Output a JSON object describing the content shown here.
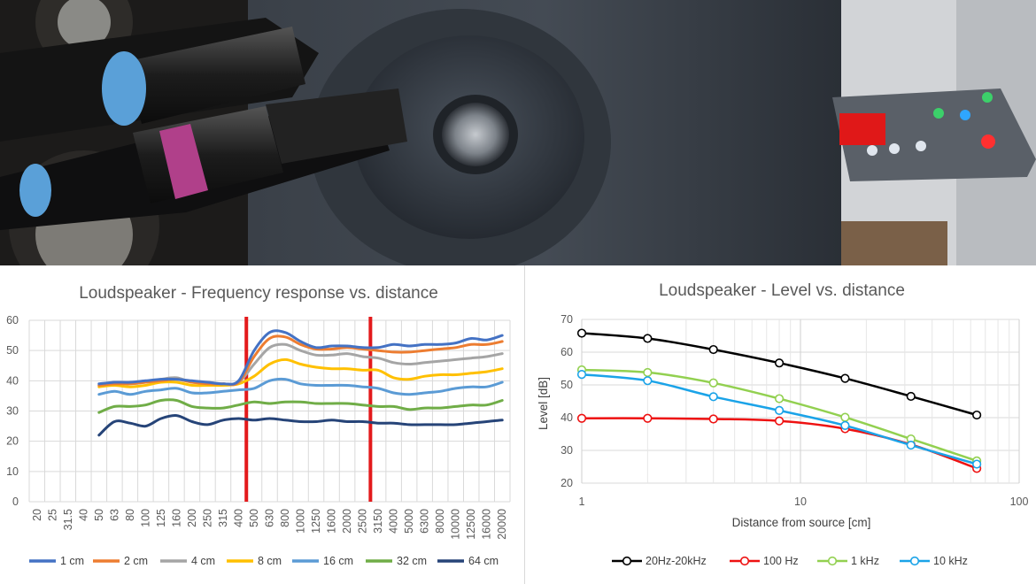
{
  "photo": {
    "subject": "Microphone in front of loudspeaker tweeter, audio interface on the right",
    "colors": {
      "speaker": "#2a2f36",
      "wall": "#c9ccd0",
      "cable": "#101214",
      "mic_body": "#2a2a2a",
      "blue_tip": "#5aa0d8",
      "pink_ring": "#b0408a",
      "led_red": "#ff2020"
    }
  },
  "chart_data": [
    {
      "type": "line",
      "title": "Loudspeaker - Frequency response vs. distance",
      "xlabel": "",
      "ylabel": "",
      "ylim": [
        0,
        60
      ],
      "yticks": [
        0,
        10,
        20,
        30,
        40,
        50,
        60
      ],
      "grid": true,
      "legend_position": "bottom",
      "categories": [
        "20",
        "25",
        "31.5",
        "40",
        "50",
        "63",
        "80",
        "100",
        "125",
        "160",
        "200",
        "250",
        "315",
        "400",
        "500",
        "630",
        "800",
        "1000",
        "1250",
        "1600",
        "2000",
        "2500",
        "3150",
        "4000",
        "5000",
        "6300",
        "8000",
        "10000",
        "12500",
        "16000",
        "20000"
      ],
      "markers": {
        "color": "#e31a1c",
        "categories": [
          "500",
          "3150"
        ]
      },
      "series": [
        {
          "name": "1 cm",
          "color": "#4472c4",
          "values": [
            null,
            null,
            null,
            null,
            39,
            39.5,
            39.5,
            40,
            40.5,
            40.5,
            40,
            39.5,
            39,
            40,
            50,
            56,
            56,
            53,
            51,
            51.5,
            51.5,
            51,
            51,
            52,
            51.5,
            52,
            52,
            52.5,
            54,
            53.5,
            55
          ]
        },
        {
          "name": "2 cm",
          "color": "#ed7d31",
          "values": [
            null,
            null,
            null,
            null,
            38.5,
            39,
            39,
            39.5,
            40,
            40.5,
            39.5,
            39,
            39,
            39.5,
            48,
            54,
            54.5,
            52,
            50.5,
            50.5,
            51,
            50.5,
            50,
            49.5,
            49.5,
            50,
            50.5,
            51,
            52,
            52,
            53
          ]
        },
        {
          "name": "4 cm",
          "color": "#a5a5a5",
          "values": [
            null,
            null,
            null,
            null,
            38.5,
            39.5,
            39,
            39.5,
            40.5,
            41,
            39.5,
            39.5,
            39,
            39.5,
            45.5,
            51,
            52,
            50,
            48.5,
            48.5,
            49,
            48,
            47.5,
            46,
            45.5,
            46,
            46.5,
            47,
            47.5,
            48,
            49
          ]
        },
        {
          "name": "8 cm",
          "color": "#ffc000",
          "values": [
            null,
            null,
            null,
            null,
            38,
            38.5,
            38,
            38.5,
            39.5,
            39.5,
            38.5,
            38.5,
            38.5,
            39,
            41.5,
            45.5,
            47,
            45.5,
            44.5,
            44,
            44,
            43.5,
            43.5,
            41,
            40.5,
            41.5,
            42,
            42,
            42.5,
            43,
            44
          ]
        },
        {
          "name": "16 cm",
          "color": "#5b9bd5",
          "values": [
            null,
            null,
            null,
            null,
            35.5,
            36.5,
            35.5,
            36.5,
            37,
            37.5,
            36,
            36,
            36.5,
            37,
            37.5,
            40,
            40.5,
            39,
            38.5,
            38.5,
            38.5,
            38,
            37.5,
            36,
            35.5,
            36,
            36.5,
            37.5,
            38,
            38,
            39.5
          ]
        },
        {
          "name": "32 cm",
          "color": "#70ad47",
          "values": [
            null,
            null,
            null,
            null,
            29.5,
            31.5,
            31.5,
            32,
            33.5,
            33.5,
            31.5,
            31,
            31,
            32,
            33,
            32.5,
            33,
            33,
            32.5,
            32.5,
            32.5,
            32,
            31.5,
            31.5,
            30.5,
            31,
            31,
            31.5,
            32,
            32,
            33.5
          ]
        },
        {
          "name": "64 cm",
          "color": "#264478",
          "values": [
            null,
            null,
            null,
            null,
            22,
            26.5,
            26,
            25,
            27.5,
            28.5,
            26.5,
            25.5,
            27,
            27.5,
            27,
            27.5,
            27,
            26.5,
            26.5,
            27,
            26.5,
            26.5,
            26,
            26,
            25.5,
            25.5,
            25.5,
            25.5,
            26,
            26.5,
            27
          ]
        }
      ]
    },
    {
      "type": "line",
      "title": "Loudspeaker  - Level vs. distance",
      "xlabel": "Distance from source [cm]",
      "ylabel": "Level [dB]",
      "xscale": "log",
      "xlim": [
        1,
        100
      ],
      "xticks": [
        1,
        10,
        100
      ],
      "ylim": [
        20,
        70
      ],
      "yticks": [
        20,
        30,
        40,
        50,
        60,
        70
      ],
      "grid": true,
      "legend_position": "bottom",
      "x": [
        1,
        2,
        4,
        8,
        16,
        32,
        64
      ],
      "series": [
        {
          "name": "20Hz-20kHz",
          "color": "#000000",
          "values": [
            65.8,
            64.2,
            60.8,
            56.7,
            52,
            46.5,
            40.8
          ]
        },
        {
          "name": "100 Hz",
          "color": "#ee1111",
          "values": [
            39.8,
            39.8,
            39.6,
            39,
            36.6,
            31.8,
            24.5
          ]
        },
        {
          "name": "1 kHz",
          "color": "#92d050",
          "values": [
            54.6,
            53.8,
            50.6,
            45.8,
            40.1,
            33.5,
            26.8
          ]
        },
        {
          "name": "10 kHz",
          "color": "#1aa3e8",
          "values": [
            53.2,
            51.3,
            46.4,
            42.2,
            37.6,
            31.6,
            25.8
          ]
        }
      ]
    }
  ]
}
